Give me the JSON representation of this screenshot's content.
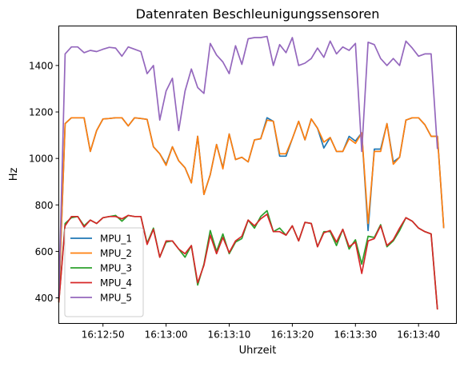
{
  "chart_data": {
    "type": "line",
    "title": "Datenraten Beschleunigungssensoren",
    "xlabel": "Uhrzeit",
    "ylabel": "Hz",
    "xlim": [
      43,
      106
    ],
    "ylim": [
      290,
      1570
    ],
    "x_ticks": [
      {
        "v": 50,
        "label": "16:12:50"
      },
      {
        "v": 60,
        "label": "16:13:00"
      },
      {
        "v": 70,
        "label": "16:13:10"
      },
      {
        "v": 80,
        "label": "16:13:20"
      },
      {
        "v": 90,
        "label": "16:13:30"
      },
      {
        "v": 100,
        "label": "16:13:40"
      }
    ],
    "y_ticks": [
      400,
      600,
      800,
      1000,
      1200,
      1400
    ],
    "grid": false,
    "legend_position": "lower-left",
    "series": [
      {
        "name": "MPU_1",
        "color": "#1f77b4",
        "points": [
          [
            43,
            390
          ],
          [
            44,
            1150
          ],
          [
            45,
            1175
          ],
          [
            46,
            1175
          ],
          [
            47,
            1175
          ],
          [
            48,
            1030
          ],
          [
            49,
            1120
          ],
          [
            50,
            1170
          ],
          [
            51,
            1172
          ],
          [
            52,
            1175
          ],
          [
            53,
            1175
          ],
          [
            54,
            1140
          ],
          [
            55,
            1175
          ],
          [
            56,
            1172
          ],
          [
            57,
            1168
          ],
          [
            58,
            1050
          ],
          [
            59,
            1020
          ],
          [
            60,
            975
          ],
          [
            61,
            1050
          ],
          [
            62,
            990
          ],
          [
            63,
            960
          ],
          [
            64,
            895
          ],
          [
            65,
            1095
          ],
          [
            66,
            845
          ],
          [
            67,
            930
          ],
          [
            68,
            1060
          ],
          [
            69,
            960
          ],
          [
            70,
            1105
          ],
          [
            71,
            995
          ],
          [
            72,
            1005
          ],
          [
            73,
            985
          ],
          [
            74,
            1080
          ],
          [
            75,
            1085
          ],
          [
            76,
            1175
          ],
          [
            77,
            1160
          ],
          [
            78,
            1010
          ],
          [
            79,
            1010
          ],
          [
            80,
            1085
          ],
          [
            81,
            1160
          ],
          [
            82,
            1080
          ],
          [
            83,
            1170
          ],
          [
            84,
            1130
          ],
          [
            85,
            1045
          ],
          [
            86,
            1090
          ],
          [
            87,
            1030
          ],
          [
            88,
            1030
          ],
          [
            89,
            1095
          ],
          [
            90,
            1075
          ],
          [
            91,
            1110
          ],
          [
            92,
            690
          ],
          [
            93,
            1040
          ],
          [
            94,
            1040
          ],
          [
            95,
            1150
          ],
          [
            96,
            985
          ],
          [
            97,
            1005
          ],
          [
            98,
            1165
          ],
          [
            99,
            1175
          ],
          [
            100,
            1175
          ],
          [
            101,
            1145
          ],
          [
            102,
            1095
          ],
          [
            103,
            1095
          ],
          [
            104,
            700
          ]
        ]
      },
      {
        "name": "MPU_2",
        "color": "#ff7f0e",
        "points": [
          [
            43,
            390
          ],
          [
            44,
            1150
          ],
          [
            45,
            1175
          ],
          [
            46,
            1175
          ],
          [
            47,
            1175
          ],
          [
            48,
            1030
          ],
          [
            49,
            1120
          ],
          [
            50,
            1170
          ],
          [
            51,
            1172
          ],
          [
            52,
            1175
          ],
          [
            53,
            1175
          ],
          [
            54,
            1140
          ],
          [
            55,
            1175
          ],
          [
            56,
            1172
          ],
          [
            57,
            1168
          ],
          [
            58,
            1050
          ],
          [
            59,
            1020
          ],
          [
            60,
            970
          ],
          [
            61,
            1050
          ],
          [
            62,
            990
          ],
          [
            63,
            960
          ],
          [
            64,
            895
          ],
          [
            65,
            1095
          ],
          [
            66,
            845
          ],
          [
            67,
            930
          ],
          [
            68,
            1060
          ],
          [
            69,
            955
          ],
          [
            70,
            1105
          ],
          [
            71,
            995
          ],
          [
            72,
            1005
          ],
          [
            73,
            985
          ],
          [
            74,
            1080
          ],
          [
            75,
            1085
          ],
          [
            76,
            1165
          ],
          [
            77,
            1160
          ],
          [
            78,
            1020
          ],
          [
            79,
            1020
          ],
          [
            80,
            1085
          ],
          [
            81,
            1160
          ],
          [
            82,
            1080
          ],
          [
            83,
            1170
          ],
          [
            84,
            1130
          ],
          [
            85,
            1070
          ],
          [
            86,
            1090
          ],
          [
            87,
            1030
          ],
          [
            88,
            1030
          ],
          [
            89,
            1085
          ],
          [
            90,
            1065
          ],
          [
            91,
            1110
          ],
          [
            92,
            720
          ],
          [
            93,
            1030
          ],
          [
            94,
            1030
          ],
          [
            95,
            1150
          ],
          [
            96,
            975
          ],
          [
            97,
            1005
          ],
          [
            98,
            1165
          ],
          [
            99,
            1175
          ],
          [
            100,
            1175
          ],
          [
            101,
            1145
          ],
          [
            102,
            1095
          ],
          [
            103,
            1095
          ],
          [
            104,
            700
          ]
        ]
      },
      {
        "name": "MPU_3",
        "color": "#2ca02c",
        "points": [
          [
            43,
            380
          ],
          [
            44,
            720
          ],
          [
            45,
            745
          ],
          [
            46,
            750
          ],
          [
            47,
            710
          ],
          [
            48,
            735
          ],
          [
            49,
            720
          ],
          [
            50,
            745
          ],
          [
            51,
            750
          ],
          [
            52,
            755
          ],
          [
            53,
            730
          ],
          [
            54,
            755
          ],
          [
            55,
            750
          ],
          [
            56,
            750
          ],
          [
            57,
            635
          ],
          [
            58,
            700
          ],
          [
            59,
            575
          ],
          [
            60,
            640
          ],
          [
            61,
            645
          ],
          [
            62,
            610
          ],
          [
            63,
            575
          ],
          [
            64,
            625
          ],
          [
            65,
            455
          ],
          [
            66,
            545
          ],
          [
            67,
            690
          ],
          [
            68,
            600
          ],
          [
            69,
            675
          ],
          [
            70,
            590
          ],
          [
            71,
            640
          ],
          [
            72,
            655
          ],
          [
            73,
            735
          ],
          [
            74,
            700
          ],
          [
            75,
            750
          ],
          [
            76,
            775
          ],
          [
            77,
            685
          ],
          [
            78,
            700
          ],
          [
            79,
            670
          ],
          [
            80,
            710
          ],
          [
            81,
            645
          ],
          [
            82,
            725
          ],
          [
            83,
            720
          ],
          [
            84,
            620
          ],
          [
            85,
            685
          ],
          [
            86,
            685
          ],
          [
            87,
            625
          ],
          [
            88,
            695
          ],
          [
            89,
            610
          ],
          [
            90,
            650
          ],
          [
            91,
            545
          ],
          [
            92,
            665
          ],
          [
            93,
            660
          ],
          [
            94,
            715
          ],
          [
            95,
            620
          ],
          [
            96,
            645
          ],
          [
            97,
            690
          ],
          [
            98,
            745
          ],
          [
            99,
            730
          ],
          [
            100,
            700
          ],
          [
            101,
            685
          ],
          [
            102,
            675
          ],
          [
            103,
            350
          ]
        ]
      },
      {
        "name": "MPU_4",
        "color": "#d62728",
        "points": [
          [
            43,
            380
          ],
          [
            44,
            710
          ],
          [
            45,
            750
          ],
          [
            46,
            750
          ],
          [
            47,
            705
          ],
          [
            48,
            735
          ],
          [
            49,
            720
          ],
          [
            50,
            745
          ],
          [
            51,
            750
          ],
          [
            52,
            750
          ],
          [
            53,
            740
          ],
          [
            54,
            755
          ],
          [
            55,
            750
          ],
          [
            56,
            750
          ],
          [
            57,
            630
          ],
          [
            58,
            695
          ],
          [
            59,
            575
          ],
          [
            60,
            645
          ],
          [
            61,
            645
          ],
          [
            62,
            610
          ],
          [
            63,
            590
          ],
          [
            64,
            625
          ],
          [
            65,
            465
          ],
          [
            66,
            540
          ],
          [
            67,
            670
          ],
          [
            68,
            590
          ],
          [
            69,
            660
          ],
          [
            70,
            595
          ],
          [
            71,
            645
          ],
          [
            72,
            665
          ],
          [
            73,
            735
          ],
          [
            74,
            710
          ],
          [
            75,
            740
          ],
          [
            76,
            760
          ],
          [
            77,
            685
          ],
          [
            78,
            685
          ],
          [
            79,
            670
          ],
          [
            80,
            710
          ],
          [
            81,
            645
          ],
          [
            82,
            725
          ],
          [
            83,
            720
          ],
          [
            84,
            620
          ],
          [
            85,
            680
          ],
          [
            86,
            690
          ],
          [
            87,
            640
          ],
          [
            88,
            695
          ],
          [
            89,
            620
          ],
          [
            90,
            640
          ],
          [
            91,
            505
          ],
          [
            92,
            645
          ],
          [
            93,
            655
          ],
          [
            94,
            710
          ],
          [
            95,
            625
          ],
          [
            96,
            650
          ],
          [
            97,
            700
          ],
          [
            98,
            745
          ],
          [
            99,
            730
          ],
          [
            100,
            700
          ],
          [
            101,
            685
          ],
          [
            102,
            675
          ],
          [
            103,
            350
          ]
        ]
      },
      {
        "name": "MPU_5",
        "color": "#9467bd",
        "points": [
          [
            43,
            400
          ],
          [
            44,
            1450
          ],
          [
            45,
            1480
          ],
          [
            46,
            1480
          ],
          [
            47,
            1455
          ],
          [
            48,
            1465
          ],
          [
            49,
            1460
          ],
          [
            50,
            1470
          ],
          [
            51,
            1478
          ],
          [
            52,
            1475
          ],
          [
            53,
            1440
          ],
          [
            54,
            1480
          ],
          [
            55,
            1470
          ],
          [
            56,
            1460
          ],
          [
            57,
            1365
          ],
          [
            58,
            1400
          ],
          [
            59,
            1165
          ],
          [
            60,
            1290
          ],
          [
            61,
            1345
          ],
          [
            62,
            1120
          ],
          [
            63,
            1290
          ],
          [
            64,
            1385
          ],
          [
            65,
            1305
          ],
          [
            66,
            1280
          ],
          [
            67,
            1495
          ],
          [
            68,
            1445
          ],
          [
            69,
            1415
          ],
          [
            70,
            1365
          ],
          [
            71,
            1485
          ],
          [
            72,
            1405
          ],
          [
            73,
            1515
          ],
          [
            74,
            1520
          ],
          [
            75,
            1520
          ],
          [
            76,
            1525
          ],
          [
            77,
            1400
          ],
          [
            78,
            1490
          ],
          [
            79,
            1455
          ],
          [
            80,
            1520
          ],
          [
            81,
            1400
          ],
          [
            82,
            1410
          ],
          [
            83,
            1430
          ],
          [
            84,
            1475
          ],
          [
            85,
            1435
          ],
          [
            86,
            1505
          ],
          [
            87,
            1450
          ],
          [
            88,
            1480
          ],
          [
            89,
            1465
          ],
          [
            90,
            1495
          ],
          [
            91,
            1030
          ],
          [
            92,
            1500
          ],
          [
            93,
            1490
          ],
          [
            94,
            1430
          ],
          [
            95,
            1400
          ],
          [
            96,
            1430
          ],
          [
            97,
            1400
          ],
          [
            98,
            1505
          ],
          [
            99,
            1475
          ],
          [
            100,
            1440
          ],
          [
            101,
            1450
          ],
          [
            102,
            1450
          ],
          [
            103,
            1040
          ]
        ]
      }
    ]
  }
}
